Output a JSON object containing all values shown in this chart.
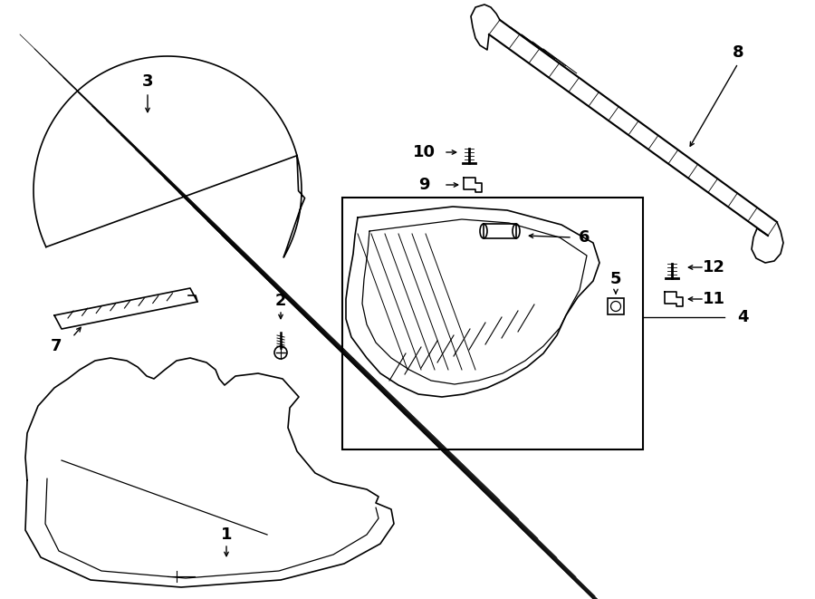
{
  "bg_color": "#ffffff",
  "line_color": "#000000",
  "lw": 1.2,
  "fig_width": 9.0,
  "fig_height": 6.61,
  "dpi": 100
}
